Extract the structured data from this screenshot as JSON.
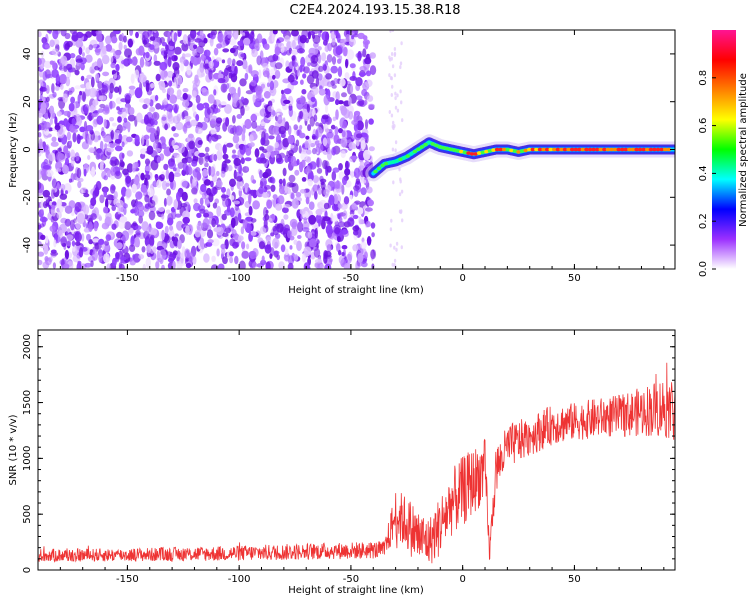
{
  "title": "C2E4.2024.193.15.38.R18",
  "chart_data": [
    {
      "type": "heatmap",
      "xlabel": "Height of straight line (km)",
      "ylabel": "Frequency (Hz)",
      "xlim": [
        -190,
        95
      ],
      "ylim": [
        -50,
        50
      ],
      "xticks": [
        -150,
        -100,
        -50,
        0,
        50
      ],
      "yticks": [
        -40,
        -20,
        0,
        20,
        40
      ],
      "noise_region_x": [
        -190,
        -40
      ],
      "signal_trace": {
        "x": [
          -40,
          -35,
          -30,
          -25,
          -20,
          -15,
          -10,
          -5,
          0,
          5,
          10,
          15,
          20,
          25,
          30,
          40,
          45,
          60,
          80,
          95
        ],
        "y": [
          -10,
          -6,
          -5,
          -3,
          0,
          3,
          1,
          0,
          -1,
          -2,
          -1,
          0,
          0,
          -1,
          0,
          0,
          0,
          0,
          0,
          0
        ]
      },
      "colorbar": {
        "label": "Normalized spectral amplitude",
        "range": [
          0,
          1
        ],
        "ticks": [
          "0.0",
          "0.2",
          "0.4",
          "0.6",
          "0.8"
        ],
        "colors": [
          "#ffffff",
          "#9b30ff",
          "#0000ff",
          "#00ffff",
          "#00ff00",
          "#ffff00",
          "#ff7f00",
          "#ff0000",
          "#ff1493"
        ]
      }
    },
    {
      "type": "line",
      "xlabel": "Height of straight line (km)",
      "ylabel": "SNR (10 * v/v)",
      "xlim": [
        -190,
        95
      ],
      "ylim": [
        0,
        2150
      ],
      "xticks": [
        -150,
        -100,
        -50,
        0,
        50
      ],
      "yticks": [
        0,
        500,
        1000,
        1500,
        2000
      ],
      "color": "#ee3333",
      "envelope": {
        "x": [
          -190,
          -150,
          -100,
          -60,
          -35,
          -30,
          -25,
          -20,
          -15,
          -10,
          -5,
          0,
          5,
          10,
          12,
          15,
          20,
          30,
          40,
          50,
          60,
          70,
          80,
          90,
          95
        ],
        "mean": [
          130,
          135,
          150,
          170,
          180,
          500,
          420,
          300,
          250,
          400,
          600,
          700,
          800,
          900,
          150,
          900,
          1100,
          1200,
          1300,
          1330,
          1360,
          1380,
          1420,
          1460,
          1450
        ],
        "spread": [
          60,
          60,
          70,
          75,
          80,
          230,
          250,
          260,
          220,
          280,
          300,
          320,
          300,
          280,
          100,
          220,
          200,
          180,
          180,
          170,
          180,
          190,
          220,
          280,
          300
        ]
      }
    }
  ]
}
